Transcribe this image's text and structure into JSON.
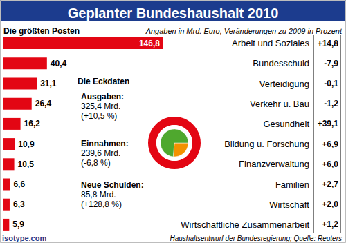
{
  "chart_data": [
    {
      "type": "bar",
      "title": "Geplanter Bundeshaushalt 2010",
      "subtitle": "Angaben in Mrd. Euro, Veränderungen zu 2009 in Prozent",
      "orientation": "horizontal",
      "categories": [
        "Arbeit und Soziales",
        "Bundesschuld",
        "Verteidigung",
        "Verkehr u. Bau",
        "Gesundheit",
        "Bildung u. Forschung",
        "Finanzverwaltung",
        "Familien",
        "Wirtschaft",
        "Wirtschaftliche Zusammenarbeit"
      ],
      "values": [
        146.8,
        40.4,
        31.1,
        26.4,
        16.2,
        10.9,
        10.5,
        6.6,
        6.3,
        5.9
      ],
      "value_labels": [
        "146,8",
        "40,4",
        "31,1",
        "26,4",
        "16,2",
        "10,9",
        "10,5",
        "6,6",
        "6,3",
        "5,9"
      ],
      "changes": [
        14.8,
        -7.9,
        -0.1,
        -1.2,
        39.1,
        6.9,
        6.0,
        2.7,
        2.0,
        1.2
      ],
      "change_labels": [
        "+14,8",
        "-7,9",
        "-0,1",
        "-1,2",
        "+39,1",
        "+6,9",
        "+6,0",
        "+2,7",
        "+2,0",
        "+1,2"
      ],
      "color": "#e30613",
      "xlim": [
        0,
        300
      ],
      "data_labels": true,
      "tick_labels": false,
      "grid": false
    },
    {
      "type": "pie",
      "values": [
        85.8,
        239.6
      ],
      "colors": [
        "#f39200",
        "#4fa82e"
      ],
      "data_labels": false
    }
  ],
  "annotations": {
    "heading": "Die größten Posten",
    "source": "Haushaltsentwurf der Bundesregierung; Quelle: Reuters",
    "credit": "isotype.com"
  },
  "key_figures": {
    "title": "Die Eckdaten",
    "items": [
      {
        "label": "Ausgaben:",
        "amount": "325,4 Mrd.",
        "change": "(+10,5 %)"
      },
      {
        "label": "Einnahmen:",
        "amount": "239,6 Mrd.",
        "change": "(-6,8 %)"
      },
      {
        "label": "Neue Schulden:",
        "amount": "85,8 Mrd.",
        "change": "(+128,8 %)"
      }
    ]
  }
}
